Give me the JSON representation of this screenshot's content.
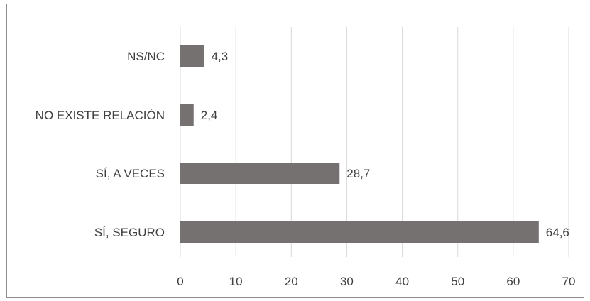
{
  "chart_data": {
    "type": "bar",
    "orientation": "horizontal",
    "categories": [
      "NS/NC",
      "NO EXISTE RELACIÓN",
      "SÍ, A VECES",
      "SÍ, SEGURO"
    ],
    "values": [
      4.3,
      2.4,
      28.7,
      64.6
    ],
    "data_labels": [
      "4,3",
      "2,4",
      "28,7",
      "64,6"
    ],
    "title": "",
    "xlabel": "",
    "ylabel": "",
    "xlim": [
      0,
      70
    ],
    "xticks": [
      0,
      10,
      20,
      30,
      40,
      50,
      60,
      70
    ],
    "grid": "vertical",
    "legend": "none",
    "bar_color": "#767171",
    "grid_color": "#d9d9d9",
    "text_color": "#404040"
  }
}
